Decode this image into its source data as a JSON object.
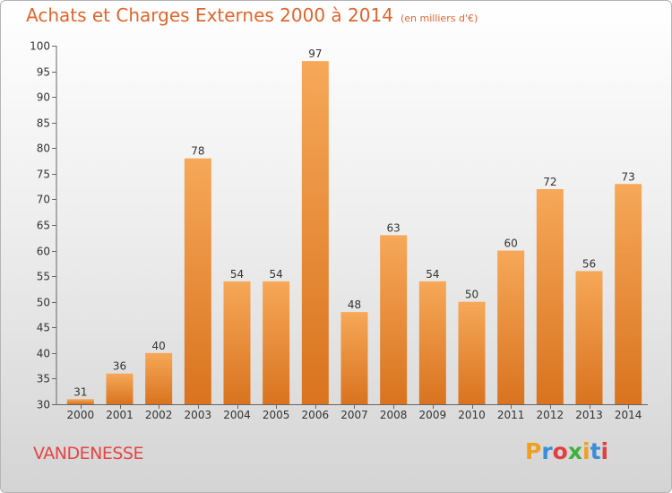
{
  "header": {
    "title": "Achats et Charges Externes 2000 à 2014",
    "unit": "(en milliers d'€)"
  },
  "footer": {
    "commune": "VANDENESSE",
    "brand": "Proxiti"
  },
  "colors": {
    "title": "#e0662d",
    "commune": "#e64545",
    "bar_top": "#f6a858",
    "bar_bottom": "#d9731f",
    "brand_letters": [
      "#f0a020",
      "#3a8fd8",
      "#e04040",
      "#40b040",
      "#f0a020",
      "#3a8fd8",
      "#e04040"
    ]
  },
  "chart_data": {
    "type": "bar",
    "title": "Achats et Charges Externes 2000 à 2014",
    "subtitle": "(en milliers d'€)",
    "categories": [
      "2000",
      "2001",
      "2002",
      "2003",
      "2004",
      "2005",
      "2006",
      "2007",
      "2008",
      "2009",
      "2010",
      "2011",
      "2012",
      "2013",
      "2014"
    ],
    "values": [
      31,
      36,
      40,
      78,
      54,
      54,
      97,
      48,
      63,
      54,
      50,
      60,
      72,
      56,
      73
    ],
    "ylim": [
      30,
      100
    ],
    "yticks": [
      30,
      35,
      40,
      45,
      50,
      55,
      60,
      65,
      70,
      75,
      80,
      85,
      90,
      95,
      100
    ],
    "grid": false,
    "legend": "none"
  }
}
